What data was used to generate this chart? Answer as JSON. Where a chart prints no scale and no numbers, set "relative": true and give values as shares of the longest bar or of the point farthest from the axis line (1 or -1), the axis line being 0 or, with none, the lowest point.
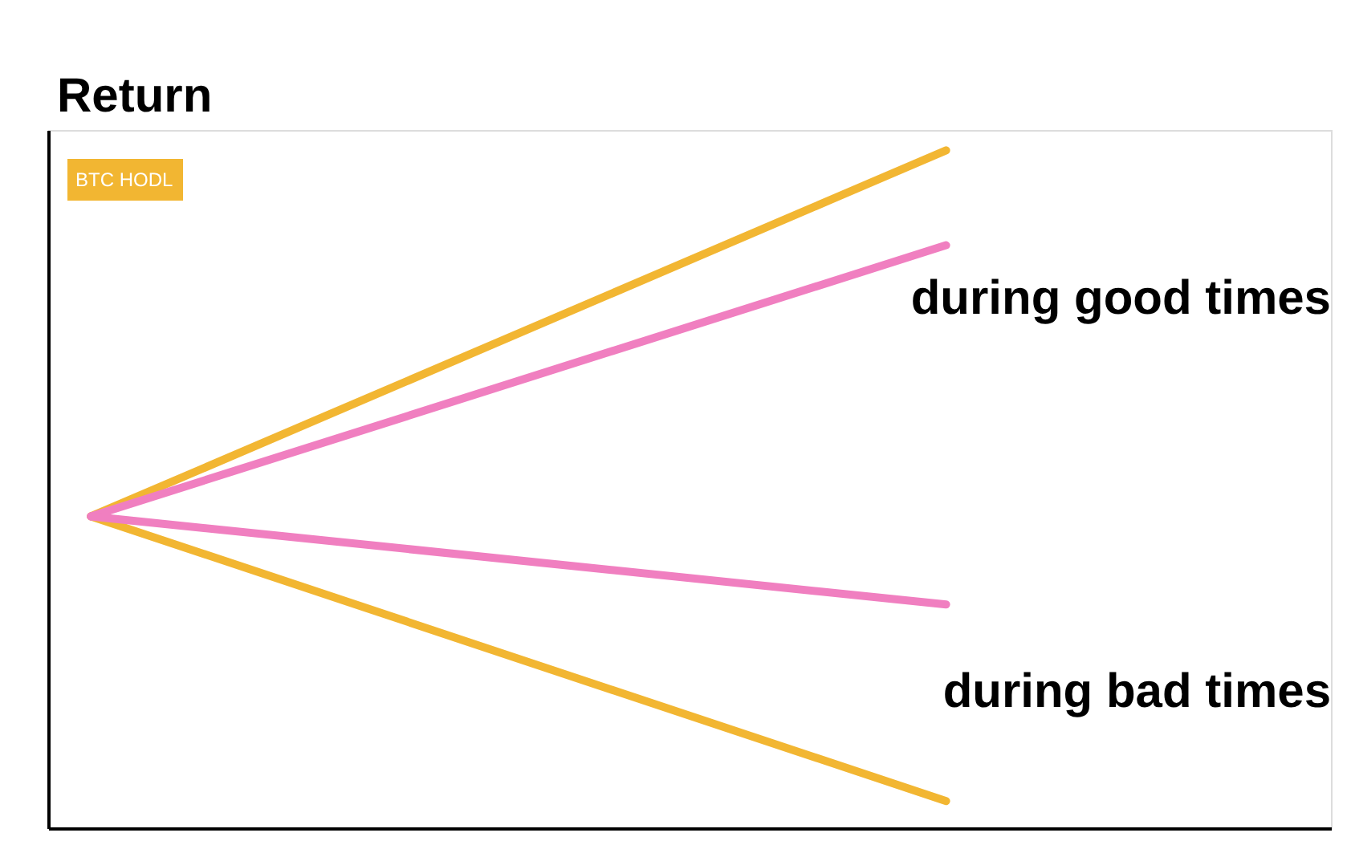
{
  "chart_data": {
    "type": "line",
    "ylabel": "Return",
    "relative": true,
    "categories": [
      null,
      null
    ],
    "series": [
      {
        "name": "BTC HODL",
        "color": "#f2b632",
        "values": [
          0.46,
          1
        ]
      },
      {
        "color": "#f2b632",
        "values": [
          0.46,
          0.04
        ]
      },
      {
        "color": "#f07fc0",
        "values": [
          0.46,
          0.86
        ]
      },
      {
        "color": "#f07fc0",
        "values": [
          0.46,
          0.33
        ]
      }
    ],
    "annotations": [
      "during good times",
      "during bad times"
    ],
    "legend": "top left",
    "grid": false,
    "marker": "none",
    "line_style": "solid"
  }
}
